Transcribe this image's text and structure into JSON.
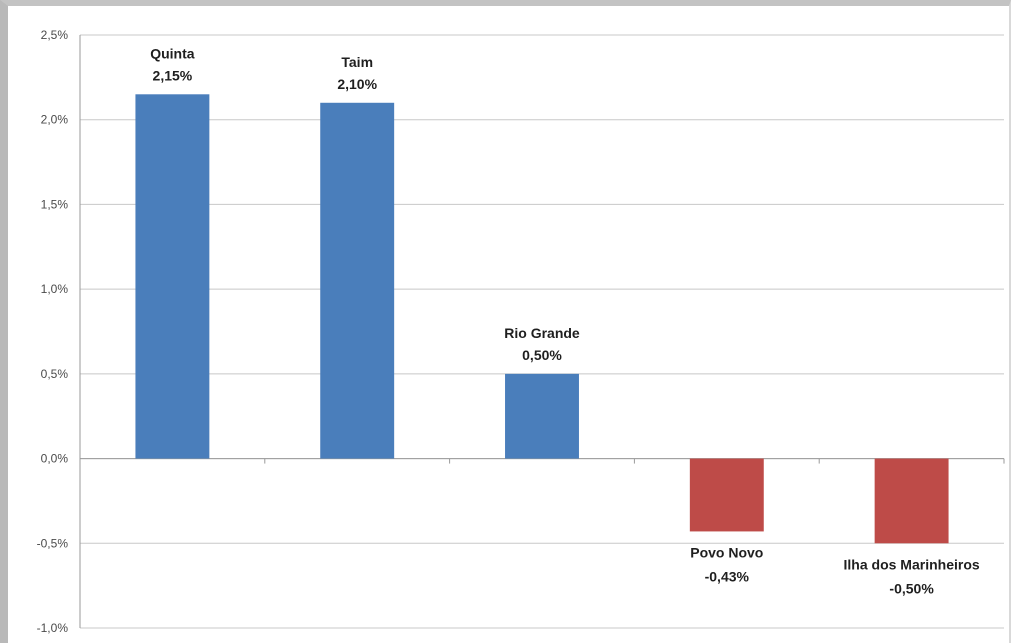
{
  "chart_data": {
    "type": "bar",
    "categories": [
      "Quinta",
      "Taim",
      "Rio Grande",
      "Povo Novo",
      "Ilha dos Marinheiros"
    ],
    "values": [
      2.15,
      2.1,
      0.5,
      -0.43,
      -0.5
    ],
    "value_labels": [
      "2,15%",
      "2,10%",
      "0,50%",
      "-0,43%",
      "-0,50%"
    ],
    "ylim": [
      -1.0,
      2.5
    ],
    "y_ticks": [
      2.5,
      2.0,
      1.5,
      1.0,
      0.5,
      0.0,
      -0.5,
      -1.0
    ],
    "y_tick_labels": [
      "2,5%",
      "2,0%",
      "1,5%",
      "1,0%",
      "0,5%",
      "0,0%",
      "-0,5%",
      "-1,0%"
    ],
    "grid": true,
    "legend": "none",
    "title": "",
    "xlabel": "",
    "ylabel": "",
    "colors": {
      "positive": "#4a7ebb",
      "negative": "#be4b48",
      "grid": "#c8c8c8",
      "axis": "#9a9a9a"
    }
  }
}
